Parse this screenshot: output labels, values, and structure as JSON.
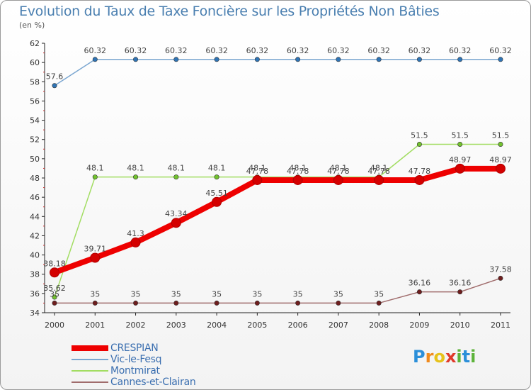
{
  "chart_data": {
    "type": "line",
    "title": "Evolution du Taux de Taxe Foncière sur les Propriétés Non Bâties",
    "unit_label": "(en %)",
    "xlabel": "",
    "ylabel": "",
    "categories": [
      "2000",
      "2001",
      "2002",
      "2003",
      "2004",
      "2005",
      "2006",
      "2007",
      "2008",
      "2009",
      "2010",
      "2011"
    ],
    "ylim": [
      34,
      62
    ],
    "y_ticks": [
      "34",
      "36",
      "38",
      "40",
      "42",
      "44",
      "46",
      "48",
      "50",
      "52",
      "54",
      "56",
      "58",
      "60",
      "62"
    ],
    "grid": false,
    "legend_position": "bottom-left",
    "series": [
      {
        "name": "CRESPIAN",
        "color": "#ee0000",
        "point_color": "#d40000",
        "values": [
          38.18,
          39.71,
          41.3,
          43.34,
          45.51,
          47.78,
          47.78,
          47.78,
          47.78,
          47.78,
          48.97,
          48.97
        ],
        "labels": [
          "38.18",
          "39.71",
          "41.3",
          "43.34",
          "45.51",
          "47.78",
          "47.78",
          "47.78",
          "47.78",
          "47.78",
          "48.97",
          "48.97"
        ]
      },
      {
        "name": "Vic-le-Fesq",
        "color": "#7aa6d0",
        "point_color": "#2f74b5",
        "values": [
          57.6,
          60.32,
          60.32,
          60.32,
          60.32,
          60.32,
          60.32,
          60.32,
          60.32,
          60.32,
          60.32,
          60.32
        ],
        "labels": [
          "57.6",
          "60.32",
          "60.32",
          "60.32",
          "60.32",
          "60.32",
          "60.32",
          "60.32",
          "60.32",
          "60.32",
          "60.32",
          "60.32"
        ]
      },
      {
        "name": "Montmirat",
        "color": "#a2dd62",
        "point_color": "#72c22e",
        "values": [
          35.62,
          48.1,
          48.1,
          48.1,
          48.1,
          48.1,
          48.1,
          48.1,
          48.1,
          51.5,
          51.5,
          51.5
        ],
        "labels": [
          "35.62",
          "48.1",
          "48.1",
          "48.1",
          "48.1",
          "48.1",
          "48.1",
          "48.1",
          "48.1",
          "51.5",
          "51.5",
          "51.5"
        ]
      },
      {
        "name": "Cannes-et-Clairan",
        "color": "#a06c6c",
        "point_color": "#6e1e1e",
        "values": [
          35,
          35,
          35,
          35,
          35,
          35,
          35,
          35,
          35,
          36.16,
          36.16,
          37.58
        ],
        "labels": [
          "35",
          "35",
          "35",
          "35",
          "35",
          "35",
          "35",
          "35",
          "35",
          "36.16",
          "36.16",
          "37.58"
        ]
      }
    ]
  },
  "logo": {
    "letters": [
      "P",
      "r",
      "o",
      "x",
      "i",
      "t",
      "i"
    ],
    "colors": [
      "#2b8fd9",
      "#f08a1c",
      "#e7c21a",
      "#e03a2a",
      "#5db33a",
      "#2b8fd9",
      "#5db33a"
    ]
  }
}
